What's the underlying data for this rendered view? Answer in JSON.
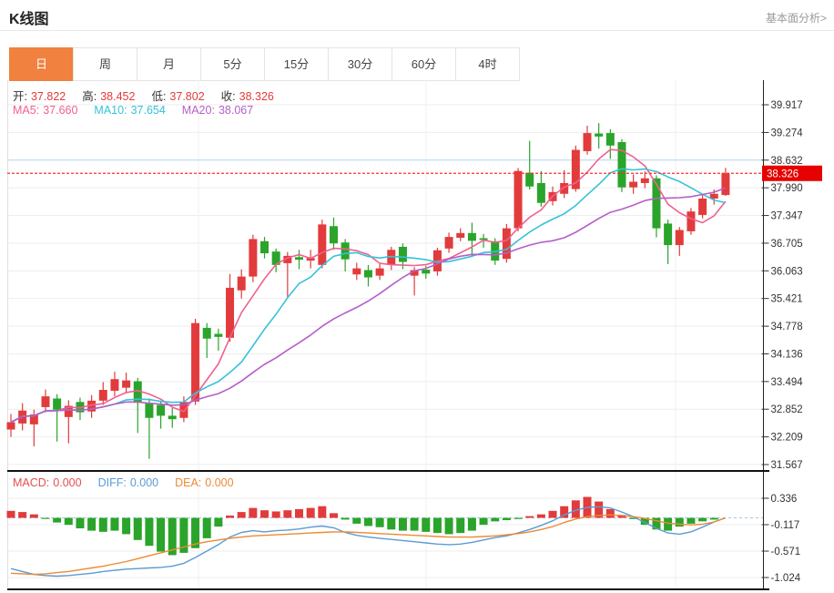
{
  "header": {
    "title": "K线图",
    "link": "基本面分析>"
  },
  "tabs": {
    "items": [
      "日",
      "周",
      "月",
      "5分",
      "15分",
      "30分",
      "60分",
      "4时"
    ],
    "active_index": 0
  },
  "ohlc_legend": {
    "items": [
      {
        "label": "开:",
        "value": "37.822"
      },
      {
        "label": "高:",
        "value": "38.452"
      },
      {
        "label": "低:",
        "value": "37.802"
      },
      {
        "label": "收:",
        "value": "38.326"
      }
    ]
  },
  "ma_legend": {
    "items": [
      {
        "label": "MA5:",
        "value": "37.660",
        "color": "#f0608f"
      },
      {
        "label": "MA10:",
        "value": "37.654",
        "color": "#35c2d8"
      },
      {
        "label": "MA20:",
        "value": "38.067",
        "color": "#b45fc8"
      }
    ]
  },
  "macd_legend": {
    "items": [
      {
        "label": "MACD:",
        "value": "0.000",
        "color": "#e25050"
      },
      {
        "label": "DIFF:",
        "value": "0.000",
        "color": "#5b9bd5"
      },
      {
        "label": "DEA:",
        "value": "0.000",
        "color": "#ed8a33"
      }
    ]
  },
  "current_price": "38.326",
  "colors": {
    "up": "#e23b3c",
    "down": "#2aa42a",
    "ma5": "#f0608f",
    "ma10": "#35c2d8",
    "ma20": "#b45fc8",
    "diff": "#5b9bd5",
    "dea": "#ed8a33",
    "badge": "#e60000",
    "last_price_line": "#ff2d2d",
    "reference_line": "#b9d7f2",
    "grid": "#ededed",
    "axis": "#222222",
    "tab_active": "#f0813f"
  },
  "chart_data": {
    "type": "candlestick",
    "title": "K线图",
    "price_axis_ticks": [
      39.917,
      39.274,
      38.632,
      37.99,
      37.347,
      36.705,
      36.063,
      35.421,
      34.778,
      34.136,
      33.494,
      32.852,
      32.209,
      31.567
    ],
    "macd_axis_ticks": [
      0.336,
      -0.117,
      -0.571,
      -1.024
    ],
    "last_price": 38.326,
    "reference_line_price": 38.632,
    "ohlc_current": {
      "open": 37.822,
      "high": 38.452,
      "low": 37.802,
      "close": 38.326
    },
    "ma_current": {
      "ma5": 37.66,
      "ma10": 37.654,
      "ma20": 38.067
    },
    "macd_current": {
      "macd": 0.0,
      "diff": 0.0,
      "dea": 0.0
    },
    "ma_periods": [
      5,
      10,
      20
    ],
    "candles": [
      [
        32.38,
        32.74,
        32.21,
        32.55
      ],
      [
        32.52,
        32.99,
        32.36,
        32.82
      ],
      [
        32.5,
        32.84,
        31.99,
        32.73
      ],
      [
        32.9,
        33.31,
        32.78,
        33.15
      ],
      [
        33.1,
        33.2,
        32.1,
        32.84
      ],
      [
        32.67,
        33.06,
        32.06,
        32.93
      ],
      [
        33.02,
        33.12,
        32.6,
        32.78
      ],
      [
        32.8,
        33.18,
        32.65,
        33.05
      ],
      [
        33.05,
        33.48,
        32.95,
        33.3
      ],
      [
        33.28,
        33.72,
        33.15,
        33.55
      ],
      [
        33.35,
        33.7,
        33.22,
        33.52
      ],
      [
        33.5,
        33.58,
        32.3,
        33.0
      ],
      [
        33.0,
        33.1,
        31.7,
        32.65
      ],
      [
        32.95,
        33.05,
        32.4,
        32.7
      ],
      [
        32.7,
        32.88,
        32.42,
        32.62
      ],
      [
        32.65,
        33.15,
        32.55,
        33.02
      ],
      [
        33.03,
        34.95,
        32.95,
        34.85
      ],
      [
        34.74,
        34.85,
        34.04,
        34.49
      ],
      [
        34.6,
        34.72,
        34.21,
        34.53
      ],
      [
        34.51,
        35.99,
        34.42,
        35.67
      ],
      [
        35.61,
        36.1,
        35.42,
        35.93
      ],
      [
        35.93,
        36.9,
        35.8,
        36.8
      ],
      [
        36.75,
        36.85,
        36.35,
        36.47
      ],
      [
        36.51,
        36.58,
        36.03,
        36.2
      ],
      [
        36.24,
        36.5,
        35.45,
        36.41
      ],
      [
        36.38,
        36.55,
        36.1,
        36.32
      ],
      [
        36.3,
        36.55,
        36.12,
        36.36
      ],
      [
        36.2,
        37.25,
        36.12,
        37.14
      ],
      [
        37.1,
        37.3,
        36.55,
        36.7
      ],
      [
        36.72,
        36.8,
        36.05,
        36.33
      ],
      [
        35.98,
        36.25,
        35.85,
        36.12
      ],
      [
        36.08,
        36.2,
        35.7,
        35.91
      ],
      [
        35.95,
        36.22,
        35.85,
        36.12
      ],
      [
        36.2,
        36.62,
        36.08,
        36.55
      ],
      [
        36.62,
        36.7,
        36.1,
        36.27
      ],
      [
        35.95,
        36.15,
        35.49,
        36.08
      ],
      [
        36.09,
        36.18,
        35.88,
        36.0
      ],
      [
        36.05,
        36.6,
        35.95,
        36.54
      ],
      [
        36.58,
        36.95,
        36.48,
        36.85
      ],
      [
        36.83,
        37.05,
        36.75,
        36.94
      ],
      [
        36.94,
        37.18,
        36.4,
        36.76
      ],
      [
        36.82,
        36.92,
        36.6,
        36.78
      ],
      [
        36.75,
        36.82,
        36.2,
        36.3
      ],
      [
        36.34,
        37.15,
        36.25,
        37.05
      ],
      [
        37.05,
        38.45,
        36.98,
        38.38
      ],
      [
        38.34,
        39.08,
        37.95,
        38.02
      ],
      [
        38.1,
        38.38,
        37.55,
        37.64
      ],
      [
        37.68,
        38.02,
        37.58,
        37.89
      ],
      [
        37.85,
        38.4,
        37.75,
        38.1
      ],
      [
        37.96,
        38.97,
        37.9,
        38.87
      ],
      [
        38.84,
        39.43,
        38.76,
        39.26
      ],
      [
        39.25,
        39.49,
        38.9,
        39.18
      ],
      [
        39.26,
        39.35,
        38.66,
        38.97
      ],
      [
        39.05,
        39.12,
        37.89,
        38.0
      ],
      [
        38.0,
        38.3,
        37.85,
        38.13
      ],
      [
        38.1,
        38.37,
        37.98,
        38.21
      ],
      [
        38.21,
        38.28,
        36.84,
        37.05
      ],
      [
        37.16,
        37.25,
        36.22,
        36.66
      ],
      [
        36.66,
        37.08,
        36.41,
        37.01
      ],
      [
        36.98,
        37.52,
        36.9,
        37.44
      ],
      [
        37.36,
        37.82,
        37.28,
        37.74
      ],
      [
        37.74,
        37.95,
        37.6,
        37.85
      ],
      [
        37.822,
        38.452,
        37.802,
        38.326
      ]
    ],
    "macd": {
      "hist": [
        0.12,
        0.1,
        0.06,
        -0.01,
        -0.08,
        -0.12,
        -0.18,
        -0.22,
        -0.24,
        -0.22,
        -0.28,
        -0.38,
        -0.48,
        -0.58,
        -0.64,
        -0.6,
        -0.52,
        -0.35,
        -0.15,
        0.04,
        0.1,
        0.17,
        0.13,
        0.11,
        0.13,
        0.15,
        0.17,
        0.2,
        0.08,
        -0.03,
        -0.1,
        -0.14,
        -0.16,
        -0.2,
        -0.22,
        -0.22,
        -0.24,
        -0.26,
        -0.28,
        -0.26,
        -0.22,
        -0.12,
        -0.06,
        -0.04,
        -0.02,
        0.03,
        0.06,
        0.12,
        0.2,
        0.3,
        0.36,
        0.28,
        0.15,
        0.05,
        -0.02,
        -0.12,
        -0.2,
        -0.22,
        -0.15,
        -0.1,
        -0.06,
        -0.03,
        0.0
      ],
      "diff": [
        -0.87,
        -0.92,
        -0.97,
        -0.99,
        -1.0,
        -0.99,
        -0.97,
        -0.95,
        -0.92,
        -0.9,
        -0.88,
        -0.87,
        -0.86,
        -0.85,
        -0.83,
        -0.78,
        -0.68,
        -0.57,
        -0.46,
        -0.33,
        -0.25,
        -0.22,
        -0.24,
        -0.22,
        -0.21,
        -0.19,
        -0.16,
        -0.14,
        -0.17,
        -0.25,
        -0.3,
        -0.33,
        -0.35,
        -0.37,
        -0.39,
        -0.41,
        -0.43,
        -0.45,
        -0.46,
        -0.45,
        -0.42,
        -0.38,
        -0.34,
        -0.31,
        -0.26,
        -0.2,
        -0.13,
        -0.05,
        0.05,
        0.13,
        0.18,
        0.19,
        0.17,
        0.1,
        0.02,
        -0.08,
        -0.18,
        -0.26,
        -0.28,
        -0.24,
        -0.16,
        -0.07,
        0.0
      ],
      "dea": [
        -0.95,
        -0.96,
        -0.97,
        -0.96,
        -0.94,
        -0.92,
        -0.89,
        -0.86,
        -0.83,
        -0.79,
        -0.75,
        -0.7,
        -0.65,
        -0.6,
        -0.55,
        -0.5,
        -0.45,
        -0.41,
        -0.38,
        -0.35,
        -0.33,
        -0.31,
        -0.3,
        -0.29,
        -0.28,
        -0.27,
        -0.26,
        -0.25,
        -0.24,
        -0.24,
        -0.25,
        -0.26,
        -0.27,
        -0.28,
        -0.29,
        -0.3,
        -0.31,
        -0.32,
        -0.33,
        -0.33,
        -0.33,
        -0.32,
        -0.31,
        -0.29,
        -0.27,
        -0.24,
        -0.2,
        -0.15,
        -0.08,
        -0.02,
        0.02,
        0.04,
        0.05,
        0.04,
        0.02,
        -0.01,
        -0.05,
        -0.09,
        -0.11,
        -0.12,
        -0.11,
        -0.07,
        0.0
      ]
    }
  }
}
